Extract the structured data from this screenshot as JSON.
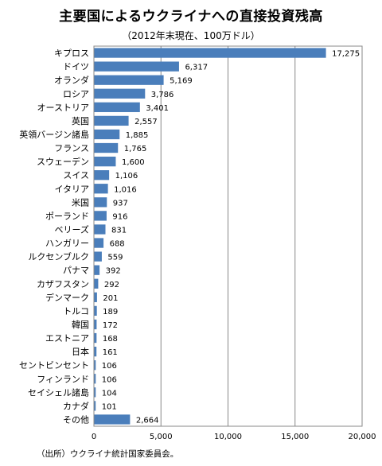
{
  "title": "主要国によるウクライナへの直接投資残高",
  "subtitle": "（2012年末現在、100万ドル）",
  "source": "（出所）ウクライナ統計国家委員会。",
  "chart_data": {
    "type": "bar",
    "orientation": "horizontal",
    "title": "主要国によるウクライナへの直接投資残高",
    "subtitle": "（2012年末現在、100万ドル）",
    "categories": [
      "キプロス",
      "ドイツ",
      "オランダ",
      "ロシア",
      "オーストリア",
      "英国",
      "英領バージン諸島",
      "フランス",
      "スウェーデン",
      "スイス",
      "イタリア",
      "米国",
      "ポーランド",
      "ベリーズ",
      "ハンガリー",
      "ルクセンブルク",
      "パナマ",
      "カザフスタン",
      "デンマーク",
      "トルコ",
      "韓国",
      "エストニア",
      "日本",
      "セントビンセント",
      "フィンランド",
      "セイシェル諸島",
      "カナダ",
      "その他"
    ],
    "values": [
      17275,
      6317,
      5169,
      3786,
      3401,
      2557,
      1885,
      1765,
      1600,
      1106,
      1016,
      937,
      916,
      831,
      688,
      559,
      392,
      292,
      201,
      189,
      172,
      168,
      161,
      106,
      106,
      104,
      101,
      2664
    ],
    "value_labels": [
      "17,275",
      "6,317",
      "5,169",
      "3,786",
      "3,401",
      "2,557",
      "1,885",
      "1,765",
      "1,600",
      "1,106",
      "1,016",
      "937",
      "916",
      "831",
      "688",
      "559",
      "392",
      "292",
      "201",
      "189",
      "172",
      "168",
      "161",
      "106",
      "106",
      "104",
      "101",
      "2,664"
    ],
    "xlim": [
      0,
      20000
    ],
    "xticks": [
      0,
      5000,
      10000,
      15000,
      20000
    ],
    "xtick_labels": [
      "0",
      "5,000",
      "10,000",
      "15,000",
      "20,000"
    ],
    "grid": "vertical",
    "bar_color": "#4a7ebb",
    "legend": "none"
  }
}
